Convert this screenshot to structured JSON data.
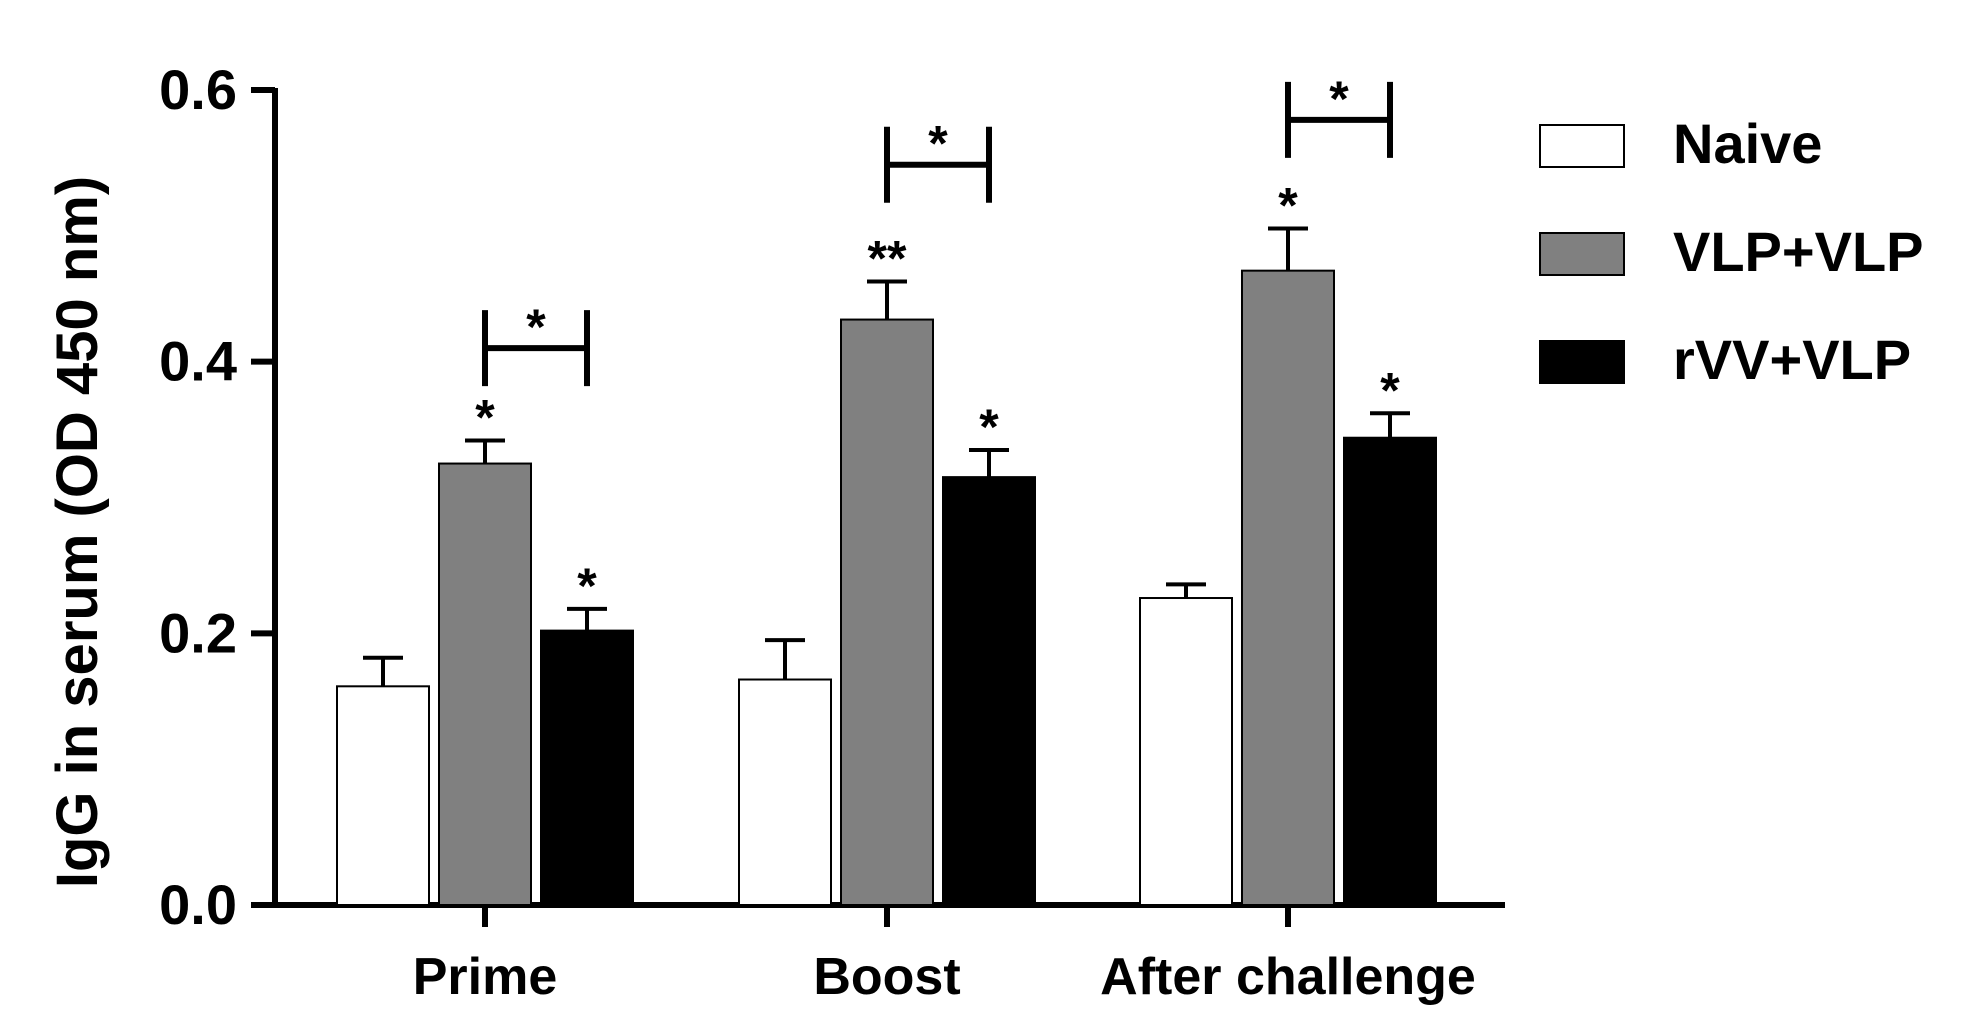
{
  "chart_data": {
    "type": "bar",
    "title": "",
    "xlabel": "",
    "ylabel": "IgG in serum (OD 450 nm)",
    "ylim": [
      0,
      0.6
    ],
    "yticks": [
      0.0,
      0.2,
      0.4,
      0.6
    ],
    "ytick_labels": [
      "0.0",
      "0.2",
      "0.4",
      "0.6"
    ],
    "categories": [
      "Prime",
      "Boost",
      "After challenge"
    ],
    "series": [
      {
        "name": "Naive",
        "color": "#ffffff",
        "values": [
          0.161,
          0.166,
          0.226
        ],
        "errors": [
          0.021,
          0.029,
          0.01
        ],
        "sig": [
          "",
          "",
          ""
        ]
      },
      {
        "name": "VLP+VLP",
        "color": "#808080",
        "values": [
          0.325,
          0.431,
          0.467
        ],
        "errors": [
          0.017,
          0.028,
          0.031
        ],
        "sig": [
          "*",
          "**",
          "*"
        ]
      },
      {
        "name": "rVV+VLP",
        "color": "#000000",
        "values": [
          0.202,
          0.315,
          0.344
        ],
        "errors": [
          0.016,
          0.02,
          0.018
        ],
        "sig": [
          "*",
          "*",
          "*"
        ]
      }
    ],
    "comparisons": [
      {
        "category": "Prime",
        "from": "VLP+VLP",
        "to": "rVV+VLP",
        "label": "*",
        "level": 0.41
      },
      {
        "category": "Boost",
        "from": "VLP+VLP",
        "to": "rVV+VLP",
        "label": "*",
        "level": 0.545
      },
      {
        "category": "After challenge",
        "from": "VLP+VLP",
        "to": "rVV+VLP",
        "label": "*",
        "level": 0.578
      }
    ],
    "legend_position": "top-right"
  }
}
